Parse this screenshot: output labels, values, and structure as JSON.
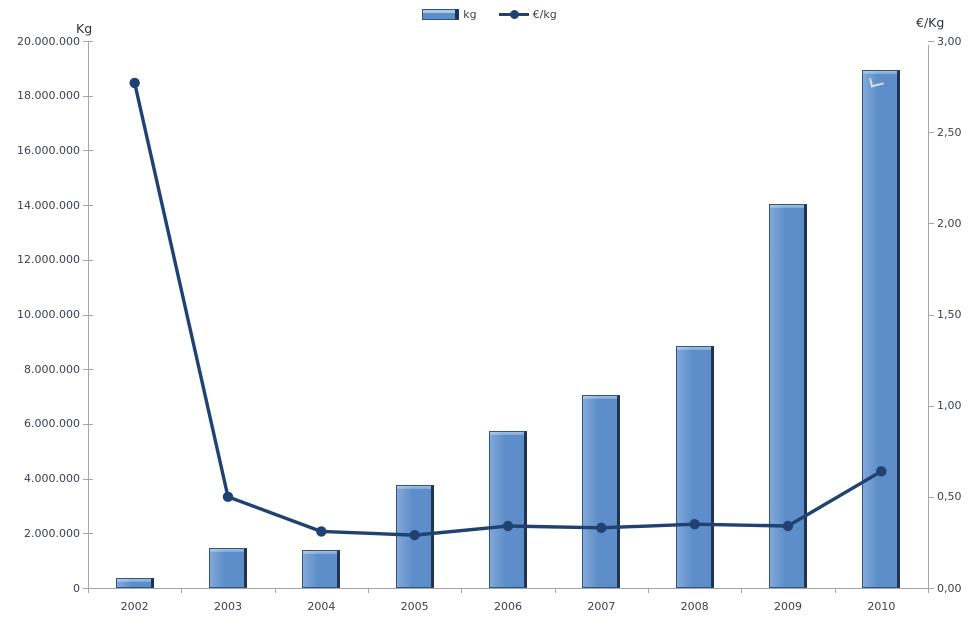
{
  "chart_data": {
    "type": "combo",
    "categories": [
      "2002",
      "2003",
      "2004",
      "2005",
      "2006",
      "2007",
      "2008",
      "2009",
      "2010"
    ],
    "series": [
      {
        "name": "kg",
        "type": "bar",
        "axis": "left",
        "values": [
          350000,
          1450000,
          1400000,
          3750000,
          5750000,
          7050000,
          8850000,
          14050000,
          18950000
        ]
      },
      {
        "name": "€/kg",
        "type": "line",
        "axis": "right",
        "values": [
          2.77,
          0.5,
          0.31,
          0.29,
          0.34,
          0.33,
          0.35,
          0.34,
          0.64
        ]
      }
    ],
    "left_axis": {
      "title": "Kg",
      "min": 0,
      "max": 20000000,
      "step": 2000000,
      "tick_labels": [
        "0",
        "2.000.000",
        "4.000.000",
        "6.000.000",
        "8.000.000",
        "10.000.000",
        "12.000.000",
        "14.000.000",
        "16.000.000",
        "18.000.000",
        "20.000.000"
      ]
    },
    "right_axis": {
      "title": "€/Kg",
      "min": 0,
      "max": 3,
      "step": 0.5,
      "tick_labels": [
        "0,00",
        "0,50",
        "1,00",
        "1,50",
        "2,00",
        "2,50",
        "3,00"
      ]
    },
    "legend": {
      "position": "top-center",
      "entries": [
        "kg",
        "€/kg"
      ]
    },
    "grid": false,
    "title": ""
  },
  "colors": {
    "bar_body": "#5d8ec9",
    "bar_light": "#83a8d8",
    "bar_edge": "#1e3450",
    "bar_outline": "#2f5583",
    "line": "#1f4273",
    "axis_line": "#a6a6a6",
    "tick_text": "#3d4154",
    "title_text": "#2e3140",
    "artifact": "#cfe2f5"
  }
}
